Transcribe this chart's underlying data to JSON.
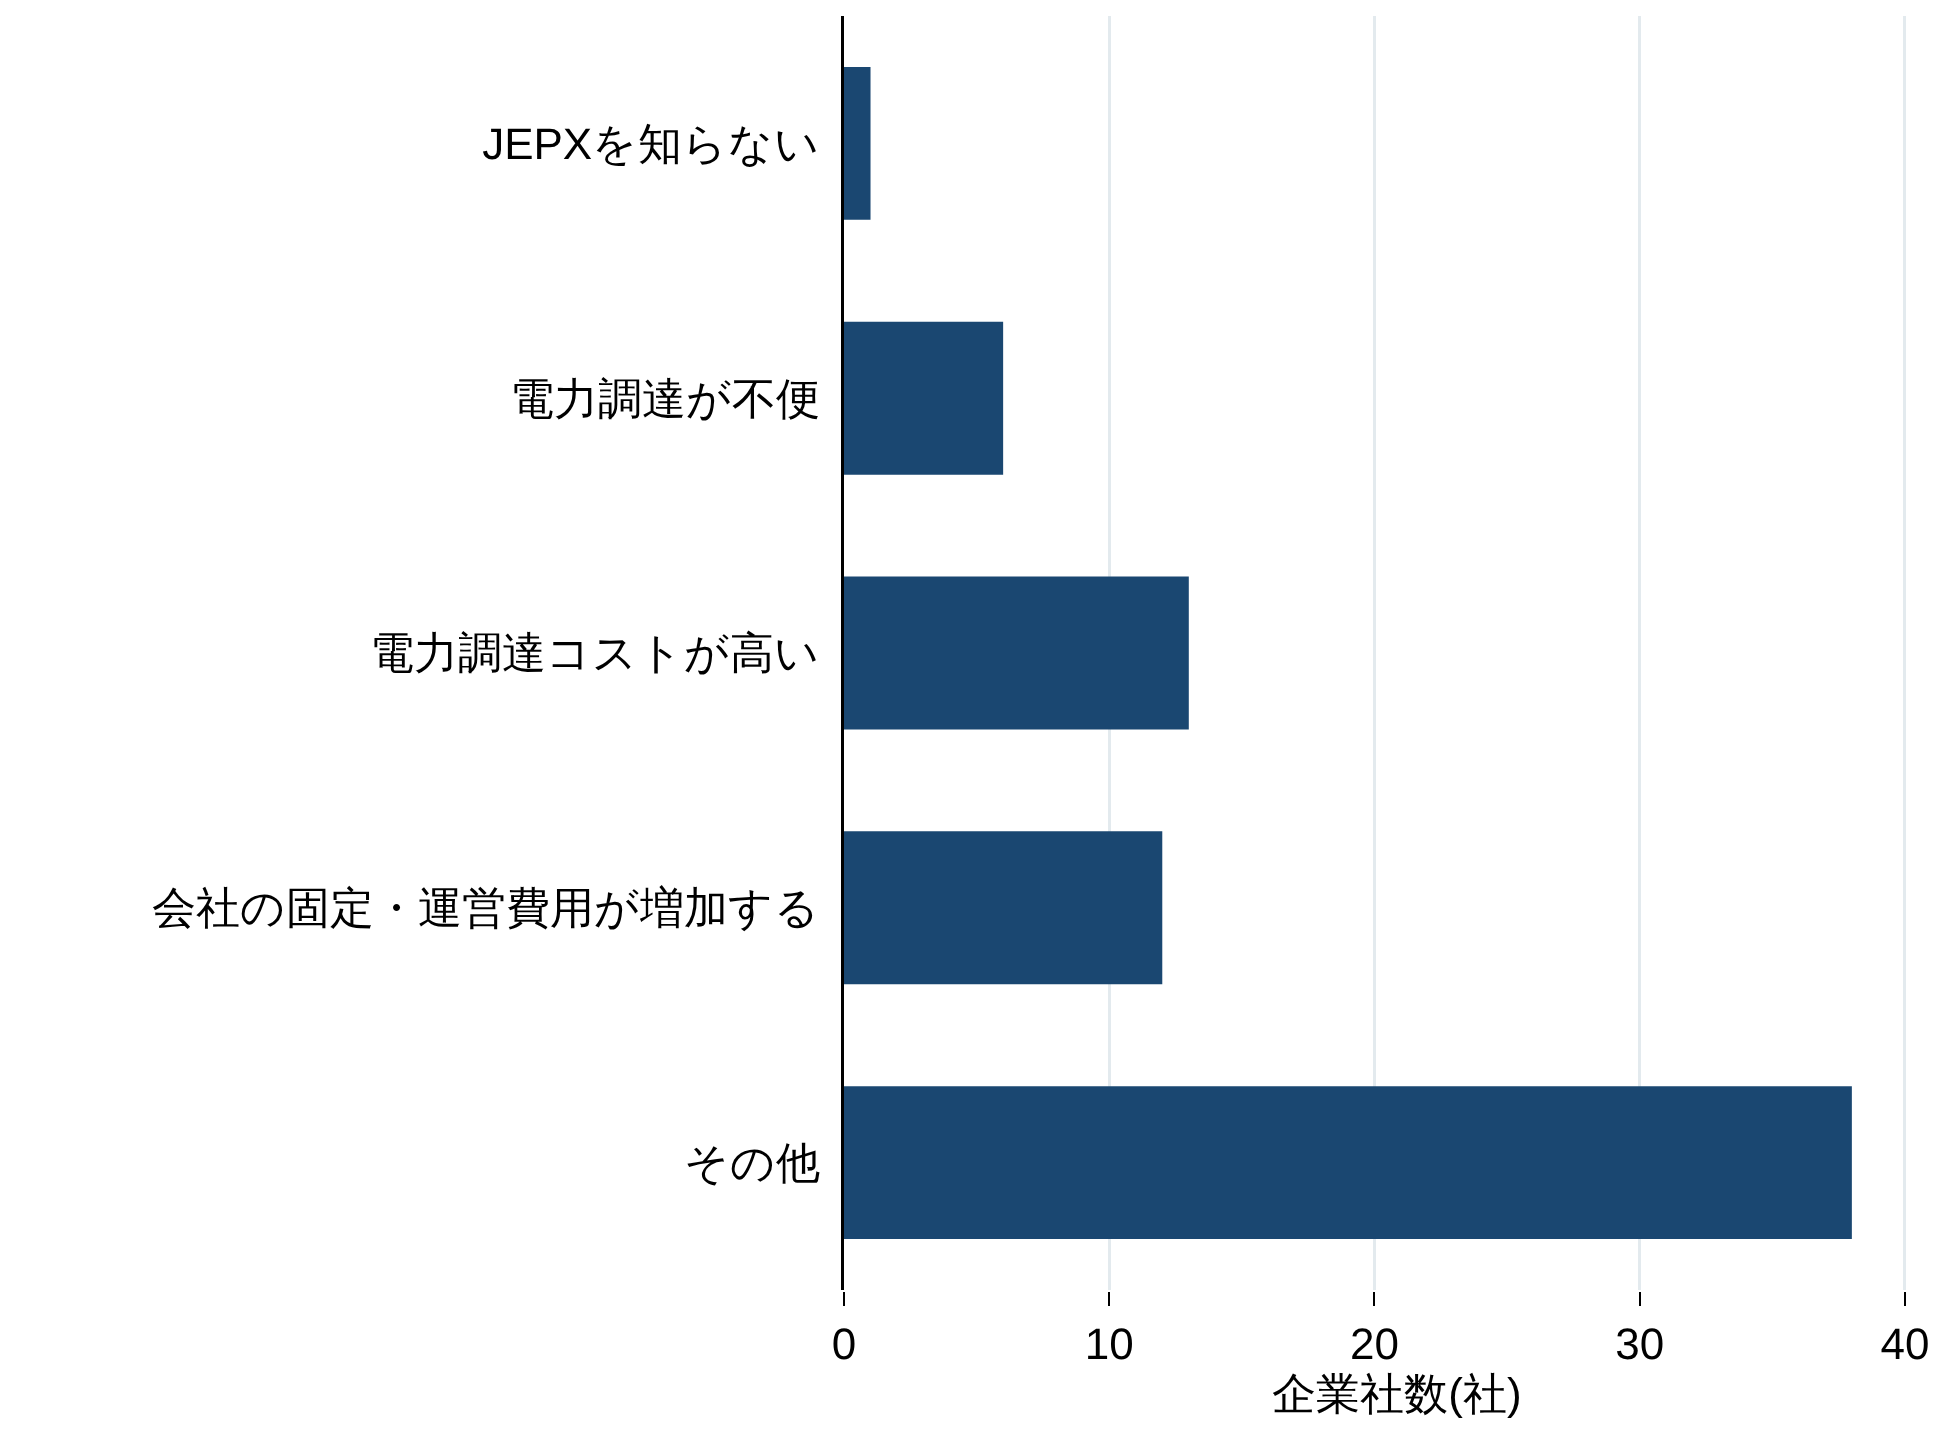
{
  "chart_data": {
    "type": "bar",
    "orientation": "horizontal",
    "categories": [
      "JEPXを知らない",
      "電力調達が不便",
      "電力調達コストが高い",
      "会社の固定・運営費用が増加する",
      "その他"
    ],
    "values": [
      1,
      6,
      13,
      12,
      38
    ],
    "color": "#1a4771",
    "xlabel": "企業社数(社)",
    "xlim": [
      0,
      41.7
    ],
    "xticks": [
      0,
      10,
      20,
      30,
      40
    ],
    "grid": "x",
    "legend": false
  }
}
